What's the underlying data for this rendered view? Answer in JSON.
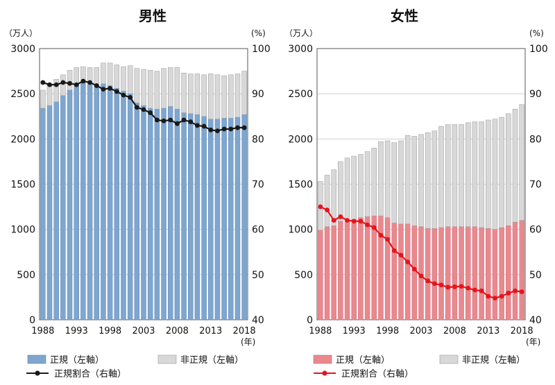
{
  "chart_data": [
    {
      "type": "bar",
      "title": "男性",
      "y_unit_left": "（万人）",
      "y_unit_right": "(%)",
      "x_unit": "(年)",
      "xlabel_ticks": [
        "1988",
        "1993",
        "1998",
        "2003",
        "2008",
        "2013",
        "2018"
      ],
      "left_axis": {
        "min": 0,
        "max": 3000,
        "ticks": [
          "0",
          "500",
          "1000",
          "1500",
          "2000",
          "2500",
          "3000"
        ]
      },
      "right_axis": {
        "min": 40,
        "max": 100,
        "ticks": [
          "40",
          "50",
          "60",
          "70",
          "80",
          "90",
          "100"
        ]
      },
      "categories": [
        1988,
        1989,
        1990,
        1991,
        1992,
        1993,
        1994,
        1995,
        1996,
        1997,
        1998,
        1999,
        2000,
        2001,
        2002,
        2003,
        2004,
        2005,
        2006,
        2007,
        2008,
        2009,
        2010,
        2011,
        2012,
        2013,
        2014,
        2015,
        2016,
        2017,
        2018
      ],
      "series": [
        {
          "name": "正規（左軸）",
          "kind": "stacked-bar",
          "color": "#7ea6cf",
          "values": [
            2340,
            2370,
            2410,
            2480,
            2540,
            2590,
            2620,
            2620,
            2590,
            2610,
            2590,
            2560,
            2530,
            2500,
            2400,
            2370,
            2340,
            2330,
            2340,
            2360,
            2330,
            2290,
            2280,
            2270,
            2250,
            2220,
            2220,
            2230,
            2230,
            2240,
            2270
          ]
        },
        {
          "name": "非正規（左軸）",
          "kind": "stacked-bar",
          "color": "#d8d8d8",
          "values": [
            200,
            240,
            250,
            230,
            220,
            200,
            180,
            170,
            200,
            230,
            250,
            260,
            270,
            310,
            380,
            400,
            420,
            420,
            440,
            430,
            460,
            440,
            440,
            450,
            460,
            500,
            490,
            470,
            480,
            480,
            480
          ]
        },
        {
          "name": "正規割合（右軸）",
          "kind": "line",
          "color": "#1a1a1a",
          "axis": "right",
          "values": [
            92.5,
            92.0,
            92.0,
            92.5,
            92.3,
            92.0,
            92.8,
            92.5,
            91.8,
            91.0,
            91.2,
            90.5,
            89.7,
            89.2,
            87.0,
            86.5,
            85.8,
            84.2,
            84.0,
            84.2,
            83.4,
            84.2,
            83.8,
            83.0,
            82.8,
            82.0,
            81.8,
            82.2,
            82.2,
            82.5,
            82.5
          ]
        }
      ]
    },
    {
      "type": "bar",
      "title": "女性",
      "y_unit_left": "（万人）",
      "y_unit_right": "(%)",
      "x_unit": "(年)",
      "xlabel_ticks": [
        "1988",
        "1993",
        "1998",
        "2003",
        "2008",
        "2013",
        "2018"
      ],
      "left_axis": {
        "min": 0,
        "max": 3000,
        "ticks": [
          "0",
          "500",
          "1000",
          "1500",
          "2000",
          "2500",
          "3000"
        ]
      },
      "right_axis": {
        "min": 40,
        "max": 100,
        "ticks": [
          "40",
          "50",
          "60",
          "70",
          "80",
          "90",
          "100"
        ]
      },
      "categories": [
        1988,
        1989,
        1990,
        1991,
        1992,
        1993,
        1994,
        1995,
        1996,
        1997,
        1998,
        1999,
        2000,
        2001,
        2002,
        2003,
        2004,
        2005,
        2006,
        2007,
        2008,
        2009,
        2010,
        2011,
        2012,
        2013,
        2014,
        2015,
        2016,
        2017,
        2018
      ],
      "series": [
        {
          "name": "正規（左軸）",
          "kind": "stacked-bar",
          "color": "#e9898f",
          "values": [
            990,
            1030,
            1040,
            1090,
            1100,
            1110,
            1130,
            1140,
            1150,
            1150,
            1130,
            1070,
            1060,
            1060,
            1040,
            1030,
            1010,
            1010,
            1020,
            1030,
            1030,
            1030,
            1030,
            1030,
            1020,
            1010,
            1000,
            1020,
            1040,
            1080,
            1100
          ]
        },
        {
          "name": "非正規（左軸）",
          "kind": "stacked-bar",
          "color": "#d8d8d8",
          "values": [
            540,
            570,
            620,
            660,
            690,
            700,
            700,
            720,
            750,
            820,
            850,
            890,
            920,
            980,
            990,
            1020,
            1060,
            1080,
            1120,
            1130,
            1130,
            1130,
            1150,
            1160,
            1170,
            1200,
            1220,
            1220,
            1240,
            1250,
            1280
          ]
        },
        {
          "name": "正規割合（右軸）",
          "kind": "line",
          "color": "#e8141c",
          "axis": "right",
          "values": [
            65.0,
            64.3,
            62.0,
            62.8,
            62.0,
            61.8,
            61.8,
            61.0,
            60.4,
            58.7,
            57.8,
            55.3,
            54.3,
            52.8,
            51.2,
            49.7,
            48.6,
            48.0,
            47.7,
            47.2,
            47.3,
            47.4,
            47.0,
            46.6,
            46.4,
            45.2,
            44.8,
            45.2,
            45.9,
            46.4,
            46.2
          ]
        }
      ]
    }
  ]
}
